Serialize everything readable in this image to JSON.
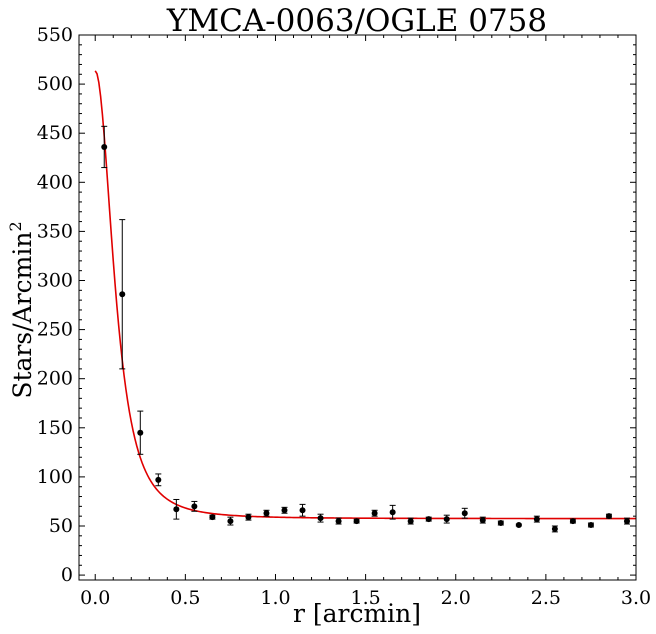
{
  "chart_data": {
    "type": "scatter",
    "title": "YMCA-0063/OGLE 0758",
    "xlabel": "r [arcmin]",
    "ylabel_main": "Stars/Arcmin",
    "ylabel_sup": "2",
    "xlim": [
      -0.09,
      3.0
    ],
    "ylim": [
      -5,
      550
    ],
    "xticks": [
      0.0,
      0.5,
      1.0,
      1.5,
      2.0,
      2.5,
      3.0
    ],
    "xtick_labels": [
      "0.0",
      "0.5",
      "1.0",
      "1.5",
      "2.0",
      "2.5",
      "3.0"
    ],
    "yticks": [
      0,
      50,
      100,
      150,
      200,
      250,
      300,
      350,
      400,
      450,
      500,
      550
    ],
    "ytick_labels": [
      "0",
      "50",
      "100",
      "150",
      "200",
      "250",
      "300",
      "350",
      "400",
      "450",
      "500",
      "550"
    ],
    "grid": false,
    "points": {
      "x": [
        0.05,
        0.15,
        0.25,
        0.35,
        0.45,
        0.55,
        0.65,
        0.75,
        0.85,
        0.95,
        1.05,
        1.15,
        1.25,
        1.35,
        1.45,
        1.55,
        1.65,
        1.75,
        1.85,
        1.95,
        2.05,
        2.15,
        2.25,
        2.35,
        2.45,
        2.55,
        2.65,
        2.75,
        2.85,
        2.95
      ],
      "y": [
        436,
        286,
        145,
        97,
        67,
        70,
        59,
        55,
        59,
        63,
        66,
        66,
        58,
        55,
        55,
        63,
        64,
        55,
        57,
        57,
        63,
        56,
        53,
        51,
        57,
        47,
        55,
        51,
        60,
        55
      ],
      "yerr": [
        21,
        76,
        22,
        6,
        10,
        5,
        2,
        4,
        3,
        3,
        3,
        6,
        4,
        3,
        2,
        3,
        7,
        3,
        2,
        4,
        5,
        3,
        2,
        1,
        3,
        3,
        2,
        2,
        2,
        3
      ]
    },
    "fit": {
      "model": "King profile",
      "background": 57.5,
      "central_amplitude": 456,
      "core_radius": 0.15,
      "color": "#e00000"
    },
    "point_color": "#000000"
  }
}
